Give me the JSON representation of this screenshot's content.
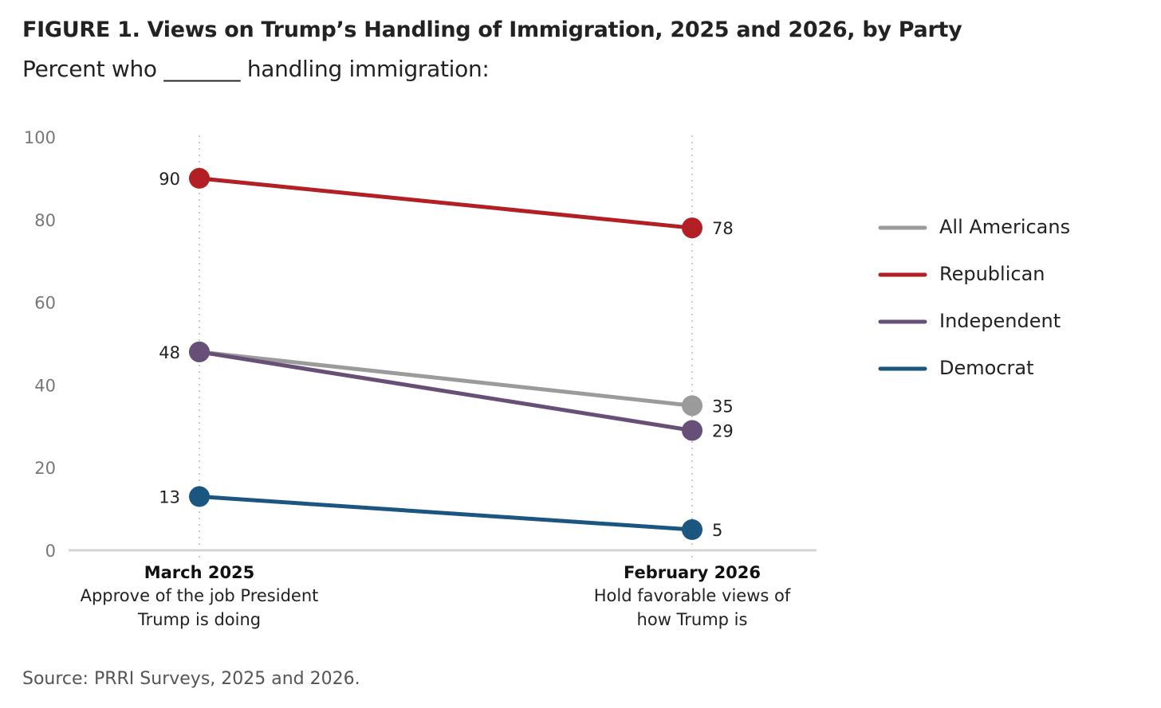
{
  "chart_data": {
    "type": "line",
    "title": "FIGURE 1.  Views on Trump’s Handling of Immigration, 2025 and 2026, by Party",
    "subtitle": "Percent who _______ handling immigration:",
    "source": "Source: PRRI Surveys, 2025 and 2026.",
    "categories": [
      {
        "label": "March 2025",
        "sub": [
          "Approve of the job President",
          "Trump is doing"
        ]
      },
      {
        "label": "February 2026",
        "sub": [
          "Hold favorable views of",
          "how Trump is"
        ]
      }
    ],
    "ylim": [
      0,
      100
    ],
    "yticks": [
      0,
      20,
      40,
      60,
      80,
      100
    ],
    "grid": false,
    "legend_position": "right",
    "series": [
      {
        "name": "All Americans",
        "values": [
          48,
          35
        ],
        "color": "#9b9b9b"
      },
      {
        "name": "Republican",
        "values": [
          90,
          78
        ],
        "color": "#b21f24"
      },
      {
        "name": "Independent",
        "values": [
          48,
          29
        ],
        "color": "#674f78"
      },
      {
        "name": "Democrat",
        "values": [
          13,
          5
        ],
        "color": "#1b5680"
      }
    ]
  }
}
